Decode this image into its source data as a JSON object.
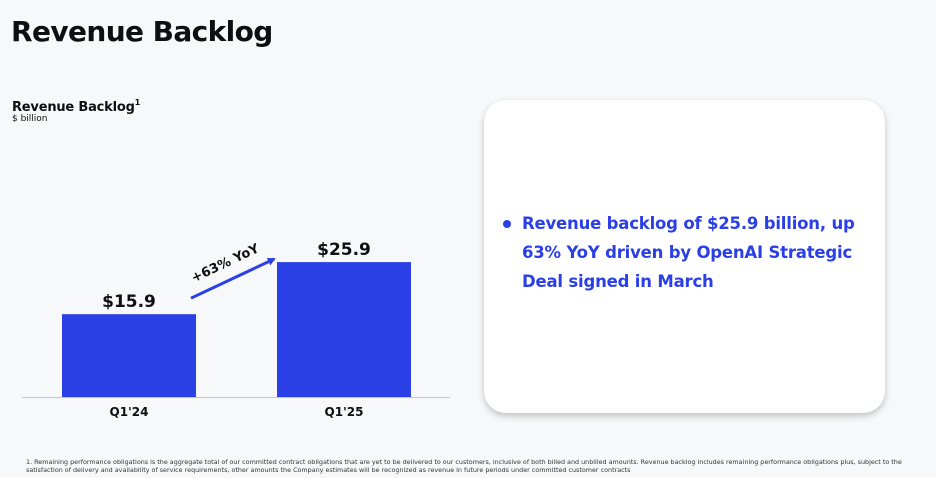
{
  "page": {
    "title": "Revenue Backlog"
  },
  "chart_header": {
    "title": "Revenue Backlog",
    "footnote_marker": "1",
    "unit": "$ billion"
  },
  "chart_data": {
    "type": "bar",
    "title": "Revenue Backlog",
    "ylabel": "$ billion",
    "xlabel": "",
    "categories": [
      "Q1'24",
      "Q1'25"
    ],
    "values": [
      15.9,
      25.9
    ],
    "data_labels": [
      "$15.9",
      "$25.9"
    ],
    "ylim": [
      0,
      28.8
    ],
    "grid": false,
    "annotation": {
      "text": "+63% YoY",
      "type": "arrow",
      "from": "Q1'24",
      "to": "Q1'25"
    },
    "colors": {
      "bar": "#2a3fe6",
      "arrow": "#2a3fe6",
      "axis": "#c6c6c6"
    }
  },
  "callout": {
    "bullets": [
      "Revenue backlog of $25.9 billion, up 63% YoY driven by OpenAI Strategic Deal signed in March"
    ]
  },
  "footnote": {
    "text": "1. Remaining performance obligations is the aggregate total of our committed contract obligations that are yet to be delivered to our customers, inclusive of both billed and unbilled amounts. Revenue backlog includes remaining performance obligations plus, subject to the satisfaction of delivery and availability of service requirements, other amounts the Company estimates will be recognized as revenue in future periods under committed customer contracts"
  },
  "colors": {
    "accent": "#2a3fe6",
    "background": "#f6f8f9",
    "card": "#ffffff"
  }
}
